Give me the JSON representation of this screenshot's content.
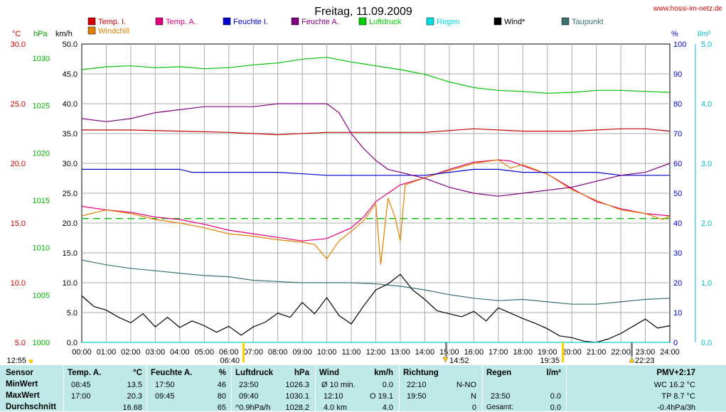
{
  "header": {
    "title": "Freitag, 11.09.2009",
    "site": "www.hossi-im-netz.de"
  },
  "colors": {
    "temp_in": "#c00000",
    "temp_out": "#e0007a",
    "hum_in": "#0000c8",
    "hum_out": "#800080",
    "pressure": "#00c000",
    "rain": "#00d0d0",
    "wind": "#000000",
    "dewpoint": "#3a7070",
    "windchill": "#e08000"
  },
  "axis_units": {
    "celsius": "°C",
    "hpa": "hPa",
    "kmh": "km/h",
    "percent": "%",
    "rain": "l/m²"
  },
  "legend": [
    {
      "label": "Temp. I.",
      "color": "#d00000"
    },
    {
      "label": "Temp. A.",
      "color": "#e0007a"
    },
    {
      "label": "Feuchte I.",
      "color": "#0000d0"
    },
    {
      "label": "Feuchte A.",
      "color": "#800080"
    },
    {
      "label": "Luftdruck",
      "color": "#00d000"
    },
    {
      "label": "Regen",
      "color": "#00e0e0"
    },
    {
      "label": "Wind*",
      "color": "#000000"
    },
    {
      "label": "Taupunkt",
      "color": "#3a7070"
    },
    {
      "label": "Windchill",
      "color": "#e08000"
    }
  ],
  "markers": {
    "sunrise": "12:55",
    "t1": "06:40",
    "t2": "14:52",
    "t3": "19:35",
    "t4": "22:23"
  },
  "chart_data": {
    "type": "line",
    "grid": true,
    "legend_position": "top",
    "x_ticks": [
      "00:00",
      "01:00",
      "02:00",
      "03:00",
      "04:00",
      "05:00",
      "06:00",
      "07:00",
      "08:00",
      "09:00",
      "10:00",
      "11:00",
      "12:00",
      "13:00",
      "14:00",
      "15:00",
      "16:00",
      "17:00",
      "18:00",
      "19:00",
      "20:00",
      "21:00",
      "22:00",
      "23:00",
      "24:00"
    ],
    "xlim": [
      0,
      24
    ],
    "axes": {
      "celsius": {
        "ticks": [
          "30.0",
          "25.0",
          "20.0",
          "15.0",
          "10.0",
          "5.0"
        ],
        "range": [
          5,
          30
        ]
      },
      "hpa": {
        "ticks": [
          "1030",
          "1025",
          "1020",
          "1015",
          "1010",
          "1005",
          "1000"
        ],
        "range": [
          1000,
          1031.5
        ]
      },
      "kmh": {
        "ticks": [
          "50.0",
          "45.0",
          "40.0",
          "35.0",
          "30.0",
          "25.0",
          "20.0",
          "15.0",
          "10.0",
          "5.0",
          "0.0"
        ],
        "range": [
          0,
          50
        ]
      },
      "percent": {
        "ticks": [
          "100",
          "90",
          "80",
          "70",
          "60",
          "50",
          "40",
          "30",
          "20",
          "10",
          "0"
        ],
        "range": [
          0,
          100
        ]
      },
      "rain": {
        "ticks": [
          "5.0",
          "4.0",
          "3.0",
          "2.0",
          "1.0",
          "0.0"
        ],
        "range": [
          0,
          5
        ]
      }
    },
    "series": [
      {
        "name": "Temp. I.",
        "axis": "celsius",
        "x": [
          0,
          2,
          4,
          6,
          8,
          10,
          12,
          14,
          16,
          18,
          20,
          22,
          23,
          24
        ],
        "values": [
          22.8,
          22.8,
          22.7,
          22.6,
          22.4,
          22.6,
          22.6,
          22.6,
          22.9,
          22.7,
          22.7,
          22.9,
          22.9,
          22.7
        ]
      },
      {
        "name": "Temp. A.",
        "axis": "celsius",
        "x": [
          0,
          1,
          2,
          3,
          4,
          5,
          6,
          7,
          8,
          9,
          10,
          11,
          11.5,
          12,
          12.5,
          13,
          14,
          15,
          16,
          17,
          17.5,
          18,
          19,
          20,
          21,
          22,
          23,
          24
        ],
        "values": [
          16.4,
          16.1,
          15.9,
          15.5,
          15.3,
          14.9,
          14.4,
          14.1,
          13.8,
          13.5,
          13.7,
          14.6,
          15.5,
          16.8,
          17.5,
          18.2,
          18.8,
          19.5,
          20.1,
          20.3,
          20.2,
          19.8,
          19.1,
          17.9,
          16.8,
          16.2,
          15.8,
          15.6
        ]
      },
      {
        "name": "Windchill",
        "axis": "celsius",
        "x": [
          0,
          1,
          2,
          3,
          4,
          5,
          6,
          7,
          8,
          9,
          9.5,
          10,
          10.5,
          11,
          11.5,
          12,
          12.2,
          12.5,
          12.8,
          13,
          13.2,
          14,
          15,
          16,
          17,
          17.5,
          18,
          19,
          20,
          21,
          22,
          23,
          23.7,
          24
        ],
        "values": [
          15.6,
          16.1,
          15.8,
          15.3,
          15.0,
          14.6,
          14.1,
          13.9,
          13.6,
          13.4,
          13.2,
          12.0,
          13.5,
          14.3,
          15.2,
          16.6,
          11.5,
          17.1,
          15.4,
          13.5,
          18.2,
          18.8,
          19.4,
          20.0,
          20.3,
          19.6,
          19.9,
          19.1,
          17.8,
          16.9,
          16.1,
          15.8,
          15.3,
          15.6
        ]
      },
      {
        "name": "Taupunkt",
        "axis": "celsius",
        "x": [
          0,
          1,
          2,
          3,
          4,
          5,
          6,
          7,
          8,
          9,
          10,
          11,
          12,
          13,
          14,
          15,
          16,
          17,
          18,
          19,
          20,
          21,
          22,
          23,
          24
        ],
        "values": [
          11.9,
          11.5,
          11.2,
          11.0,
          10.8,
          10.6,
          10.5,
          10.2,
          10.1,
          10.0,
          10.0,
          10.0,
          9.9,
          9.7,
          9.4,
          9.0,
          8.7,
          8.5,
          8.6,
          8.4,
          8.2,
          8.2,
          8.4,
          8.6,
          8.7
        ]
      },
      {
        "name": "Feuchte I.",
        "axis": "percent",
        "x": [
          0,
          2,
          4,
          4.5,
          6,
          7,
          8,
          9,
          10,
          11,
          12,
          13,
          14,
          15,
          16,
          17,
          18,
          19,
          20,
          21,
          22,
          23,
          24
        ],
        "values": [
          58,
          58,
          58,
          57,
          57,
          57,
          57,
          56.5,
          56,
          56,
          56,
          56,
          56,
          57,
          58,
          58,
          57,
          57,
          57,
          57,
          56,
          56,
          56
        ]
      },
      {
        "name": "Feuchte A.",
        "axis": "percent",
        "x": [
          0,
          1,
          2,
          3,
          4,
          5,
          6,
          7,
          8,
          9,
          10,
          10.5,
          11,
          11.5,
          12,
          12.5,
          13,
          14,
          15,
          16,
          17,
          18,
          19,
          20,
          21,
          22,
          23,
          24
        ],
        "values": [
          75,
          74,
          75,
          77,
          78,
          79,
          79,
          79,
          80,
          80,
          80,
          77,
          70,
          65,
          61,
          58,
          57,
          55,
          52,
          50,
          49,
          50,
          51,
          52,
          54,
          56,
          57,
          60
        ]
      },
      {
        "name": "Luftdruck",
        "axis": "hpa",
        "x": [
          0,
          1,
          2,
          3,
          4,
          5,
          6,
          7,
          8,
          9,
          10,
          11,
          12,
          13,
          14,
          15,
          16,
          17,
          18,
          19,
          20,
          21,
          22,
          23,
          24
        ],
        "values": [
          1028.8,
          1029.1,
          1029.2,
          1029.0,
          1029.1,
          1028.9,
          1029.0,
          1029.3,
          1029.5,
          1029.9,
          1030.1,
          1029.6,
          1029.2,
          1028.8,
          1028.3,
          1027.5,
          1026.9,
          1026.6,
          1026.5,
          1026.3,
          1026.4,
          1026.6,
          1026.6,
          1026.5,
          1026.4
        ]
      },
      {
        "name": "Wind*",
        "axis": "kmh",
        "x": [
          0,
          0.5,
          1,
          1.5,
          2,
          2.5,
          3,
          3.5,
          4,
          4.5,
          5,
          5.5,
          6,
          6.5,
          7,
          7.5,
          8,
          8.5,
          9,
          9.5,
          10,
          10.5,
          11,
          11.5,
          12,
          12.5,
          13,
          13.5,
          14,
          14.5,
          15,
          15.5,
          16,
          16.5,
          17,
          17.5,
          18,
          18.5,
          19,
          19.5,
          20,
          20.5,
          21,
          21.5,
          22,
          22.5,
          23,
          23.5,
          24
        ],
        "values": [
          7.8,
          6.0,
          5.4,
          4.2,
          3.3,
          4.8,
          2.6,
          4.2,
          2.5,
          3.6,
          2.8,
          1.7,
          2.7,
          1.2,
          2.6,
          3.4,
          4.9,
          4.2,
          6.7,
          4.8,
          7.5,
          4.5,
          3.1,
          6.1,
          8.8,
          9.8,
          11.4,
          8.8,
          7.2,
          5.3,
          4.8,
          4.3,
          5.2,
          3.6,
          5.8,
          4.9,
          4.0,
          3.2,
          2.3,
          1.1,
          0.8,
          0.2,
          0.0,
          0.6,
          1.5,
          2.7,
          3.9,
          2.4,
          2.8
        ]
      },
      {
        "name": "Regen",
        "axis": "rain",
        "x": [
          0,
          24
        ],
        "values": [
          0.0,
          0.0
        ]
      }
    ],
    "reference_line": {
      "axis": "percent",
      "value": 41.5,
      "color": "#00c000"
    }
  },
  "stats": {
    "sensor": {
      "header": "Sensor",
      "rows": [
        "MinWert",
        "MaxWert",
        "Durchschnitt"
      ]
    },
    "temp": {
      "header": "Temp. A.",
      "unit": "°C",
      "rows": [
        {
          "time": "08:45",
          "val": "13.5"
        },
        {
          "time": "17:00",
          "val": "20.3"
        },
        {
          "time": "",
          "val": "16.68"
        }
      ]
    },
    "hum": {
      "header": "Feuchte A.",
      "unit": "%",
      "rows": [
        {
          "time": "17:50",
          "val": "46"
        },
        {
          "time": "09:45",
          "val": "80"
        },
        {
          "time": "",
          "val": "65"
        }
      ]
    },
    "press": {
      "header": "Luftdruck",
      "unit": "hPa",
      "rows": [
        {
          "time": "23:50",
          "val": "1026.3"
        },
        {
          "time": "09:40",
          "val": "1030.1"
        },
        {
          "time": "^0.9hPa/h",
          "val": "1028.2"
        }
      ]
    },
    "wind": {
      "header": "Wind",
      "unit": "km/h",
      "rows": [
        {
          "time": "Ø 10 min.",
          "val": "0.0"
        },
        {
          "time": "12:10",
          "val": "O 19.1"
        },
        {
          "time": "4.0 km",
          "val": "4.0"
        }
      ]
    },
    "dir": {
      "header": "Richtung",
      "rows": [
        {
          "time": "22:10",
          "val": "N-NO"
        },
        {
          "time": "19:50",
          "val": "N"
        },
        {
          "time": "",
          "val": "0"
        }
      ]
    },
    "rain": {
      "header": "Regen",
      "unit": "l/m²",
      "rows": [
        {
          "time": "",
          "val": ""
        },
        {
          "time": "23:50",
          "val": "0.0"
        },
        {
          "time": "Gesamt:",
          "val": "0.0"
        }
      ]
    },
    "pmv": {
      "header": "PMV+2:17",
      "rows": [
        "WC 16.2 °C",
        "TP 8.7 °C",
        "-0.4hPa/3h"
      ]
    }
  }
}
